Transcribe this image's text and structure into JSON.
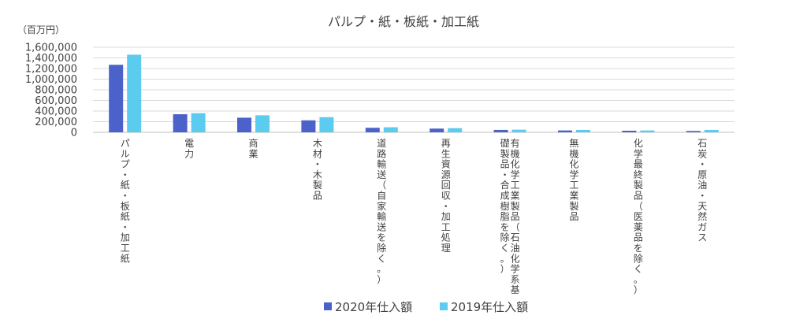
{
  "chart_data": {
    "type": "bar",
    "title": "パルプ・紙・板紙・加工紙",
    "unit_label": "（百万円）",
    "ylim": [
      0,
      1600000
    ],
    "yticks": [
      0,
      200000,
      400000,
      600000,
      800000,
      1000000,
      1200000,
      1400000,
      1600000
    ],
    "ytick_labels": [
      "0",
      "200,000",
      "400,000",
      "600,000",
      "800,000",
      "1,000,000",
      "1,200,000",
      "1,400,000",
      "1,600,000"
    ],
    "grid": true,
    "legend_position": "bottom",
    "categories": [
      [
        "パルプ・紙・板紙・加工紙"
      ],
      [
        "電力"
      ],
      [
        "商業"
      ],
      [
        "木材・木製品"
      ],
      [
        "道路輸送（自家輸送を除く。）"
      ],
      [
        "再生資源回収・加工処理"
      ],
      [
        "有機化学工業製品（石油化学系基",
        "礎製品・合成樹脂を除く。）"
      ],
      [
        "無機化学工業製品"
      ],
      [
        "化学最終製品（医薬品を除く。）"
      ],
      [
        "石炭・原油・天然ガス"
      ]
    ],
    "series": [
      {
        "name": "2020年仕入額",
        "color": "#4A62C9",
        "values": [
          1270000,
          340000,
          275000,
          225000,
          85000,
          70000,
          45000,
          35000,
          30000,
          25000
        ]
      },
      {
        "name": "2019年仕入額",
        "color": "#5BCBF0",
        "values": [
          1460000,
          360000,
          320000,
          285000,
          95000,
          78000,
          50000,
          45000,
          35000,
          45000
        ]
      }
    ]
  }
}
